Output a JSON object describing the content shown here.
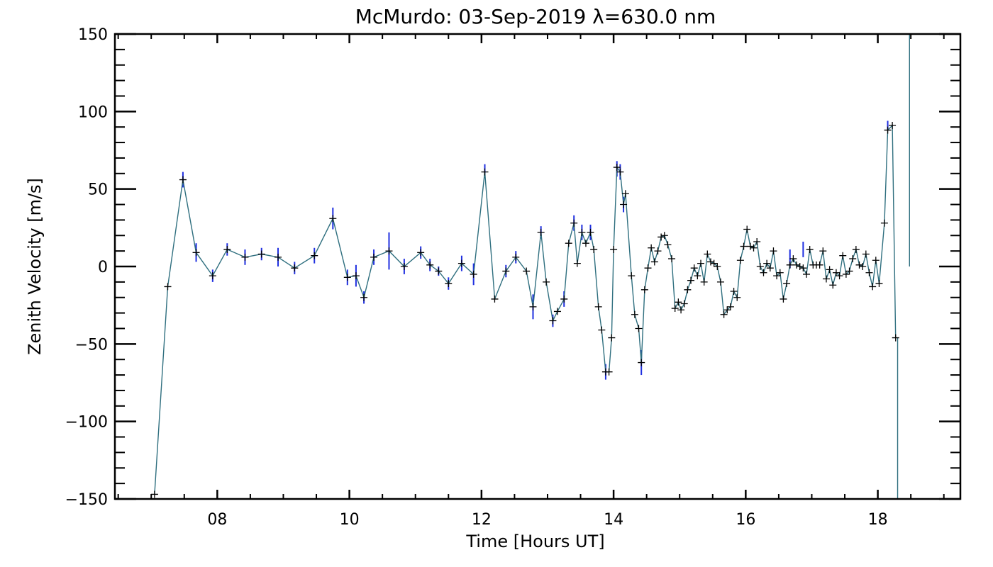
{
  "chart_data": {
    "type": "line",
    "title": "McMurdo: 03-Sep-2019 λ=630.0 nm",
    "xlabel": "Time [Hours UT]",
    "ylabel": "Zenith Velocity [m/s]",
    "xlim": [
      6.45,
      19.25
    ],
    "ylim": [
      -150,
      150
    ],
    "xticks": [
      {
        "value": 8,
        "label": "08"
      },
      {
        "value": 10,
        "label": "10"
      },
      {
        "value": 12,
        "label": "12"
      },
      {
        "value": 14,
        "label": "14"
      },
      {
        "value": 16,
        "label": "16"
      },
      {
        "value": 18,
        "label": "18"
      }
    ],
    "yticks": [
      {
        "value": -150,
        "label": "−150"
      },
      {
        "value": -100,
        "label": "−100"
      },
      {
        "value": -50,
        "label": "−50"
      },
      {
        "value": 0,
        "label": "0"
      },
      {
        "value": 50,
        "label": "50"
      },
      {
        "value": 100,
        "label": "100"
      },
      {
        "value": 150,
        "label": "150"
      }
    ],
    "colors": {
      "line": "#2f6f7f",
      "error_bar": "#1f2fe0",
      "marker": "#000000",
      "axis": "#000000"
    },
    "series": [
      {
        "name": "Zenith Velocity",
        "x": [
          7.05,
          7.25,
          7.48,
          7.68,
          7.93,
          8.15,
          8.42,
          8.67,
          8.92,
          9.17,
          9.47,
          9.75,
          9.97,
          10.1,
          10.22,
          10.37,
          10.6,
          10.83,
          11.08,
          11.22,
          11.35,
          11.5,
          11.7,
          11.88,
          12.05,
          12.2,
          12.37,
          12.52,
          12.68,
          12.78,
          12.9,
          12.98,
          13.08,
          13.15,
          13.25,
          13.32,
          13.4,
          13.45,
          13.52,
          13.58,
          13.65,
          13.7,
          13.77,
          13.82,
          13.88,
          13.93,
          13.97,
          14.0,
          14.05,
          14.1,
          14.15,
          14.18,
          14.27,
          14.32,
          14.38,
          14.42,
          14.47,
          14.52,
          14.57,
          14.62,
          14.67,
          14.72,
          14.77,
          14.82,
          14.88,
          14.93,
          14.98,
          15.02,
          15.07,
          15.12,
          15.17,
          15.22,
          15.27,
          15.32,
          15.37,
          15.42,
          15.47,
          15.52,
          15.57,
          15.62,
          15.67,
          15.72,
          15.77,
          15.82,
          15.87,
          15.92,
          15.97,
          16.02,
          16.07,
          16.12,
          16.17,
          16.22,
          16.27,
          16.32,
          16.37,
          16.42,
          16.47,
          16.52,
          16.57,
          16.62,
          16.67,
          16.72,
          16.77,
          16.82,
          16.87,
          16.92,
          16.97,
          17.02,
          17.07,
          17.12,
          17.17,
          17.22,
          17.27,
          17.32,
          17.37,
          17.42,
          17.47,
          17.52,
          17.57,
          17.62,
          17.67,
          17.72,
          17.77,
          17.82,
          17.87,
          17.92,
          17.97,
          18.02,
          18.1,
          18.15,
          18.22,
          18.27
        ],
        "y": [
          -147,
          -13,
          56,
          9,
          -6,
          11,
          6,
          8,
          6,
          -1,
          7,
          31,
          -7,
          -6,
          -20,
          6,
          10,
          0,
          9,
          1,
          -3,
          -11,
          2,
          -5,
          61,
          -21,
          -3,
          6,
          -3,
          -26,
          22,
          -10,
          -35,
          -29,
          -21,
          15,
          28,
          2,
          22,
          15,
          22,
          11,
          -26,
          -41,
          -68,
          -68,
          -46,
          11,
          64,
          61,
          40,
          47,
          -6,
          -31,
          -40,
          -62,
          -15,
          -1,
          12,
          3,
          10,
          19,
          20,
          14,
          5,
          -27,
          -23,
          -28,
          -24,
          -15,
          -9,
          -1,
          -6,
          2,
          -10,
          8,
          3,
          2,
          0,
          -10,
          -31,
          -28,
          -26,
          -16,
          -20,
          4,
          13,
          24,
          13,
          12,
          16,
          0,
          -4,
          2,
          -1,
          10,
          -6,
          -4,
          -21,
          -11,
          1,
          5,
          1,
          0,
          -1,
          -5,
          11,
          1,
          1,
          1,
          10,
          -8,
          -2,
          -12,
          -4,
          -6,
          7,
          -5,
          -3,
          5,
          11,
          1,
          0,
          8,
          -4,
          -13,
          4,
          -11,
          28,
          88,
          91,
          -46
        ]
      }
    ],
    "error_bars": [
      {
        "x": 7.48,
        "low": 51,
        "high": 61
      },
      {
        "x": 7.68,
        "low": 3,
        "high": 15
      },
      {
        "x": 7.93,
        "low": -10,
        "high": -2
      },
      {
        "x": 8.15,
        "low": 7,
        "high": 15
      },
      {
        "x": 8.42,
        "low": 1,
        "high": 11
      },
      {
        "x": 8.67,
        "low": 4,
        "high": 12
      },
      {
        "x": 8.92,
        "low": 0,
        "high": 12
      },
      {
        "x": 9.17,
        "low": -5,
        "high": 3
      },
      {
        "x": 9.47,
        "low": 2,
        "high": 12
      },
      {
        "x": 9.75,
        "low": 24,
        "high": 38
      },
      {
        "x": 9.97,
        "low": -12,
        "high": -2
      },
      {
        "x": 10.1,
        "low": -13,
        "high": 1
      },
      {
        "x": 10.22,
        "low": -24,
        "high": -16
      },
      {
        "x": 10.37,
        "low": 1,
        "high": 11
      },
      {
        "x": 10.6,
        "low": -2,
        "high": 22
      },
      {
        "x": 10.83,
        "low": -5,
        "high": 5
      },
      {
        "x": 11.08,
        "low": 5,
        "high": 13
      },
      {
        "x": 11.22,
        "low": -3,
        "high": 5
      },
      {
        "x": 11.35,
        "low": -6,
        "high": 0
      },
      {
        "x": 11.5,
        "low": -15,
        "high": -7
      },
      {
        "x": 11.7,
        "low": -3,
        "high": 7
      },
      {
        "x": 11.88,
        "low": -12,
        "high": 2
      },
      {
        "x": 12.05,
        "low": 57,
        "high": 66
      },
      {
        "x": 12.37,
        "low": -7,
        "high": 1
      },
      {
        "x": 12.52,
        "low": 2,
        "high": 10
      },
      {
        "x": 12.78,
        "low": -34,
        "high": -18
      },
      {
        "x": 12.9,
        "low": 18,
        "high": 26
      },
      {
        "x": 13.08,
        "low": -39,
        "high": -31
      },
      {
        "x": 13.25,
        "low": -26,
        "high": -16
      },
      {
        "x": 13.4,
        "low": 23,
        "high": 33
      },
      {
        "x": 13.52,
        "low": 17,
        "high": 27
      },
      {
        "x": 13.65,
        "low": 17,
        "high": 27
      },
      {
        "x": 13.88,
        "low": -73,
        "high": -63
      },
      {
        "x": 14.05,
        "low": 58,
        "high": 68
      },
      {
        "x": 14.1,
        "low": 56,
        "high": 66
      },
      {
        "x": 14.15,
        "low": 35,
        "high": 45
      },
      {
        "x": 14.42,
        "low": -70,
        "high": -54
      },
      {
        "x": 16.67,
        "low": -1,
        "high": 11
      },
      {
        "x": 16.87,
        "low": 6,
        "high": 16
      },
      {
        "x": 18.15,
        "low": 88,
        "high": 94
      }
    ],
    "vertical_segments": [
      {
        "x": 18.3,
        "y_from": -46,
        "y_to": -150
      },
      {
        "x": 18.48,
        "y_from": 0,
        "y_to": 150
      }
    ]
  }
}
